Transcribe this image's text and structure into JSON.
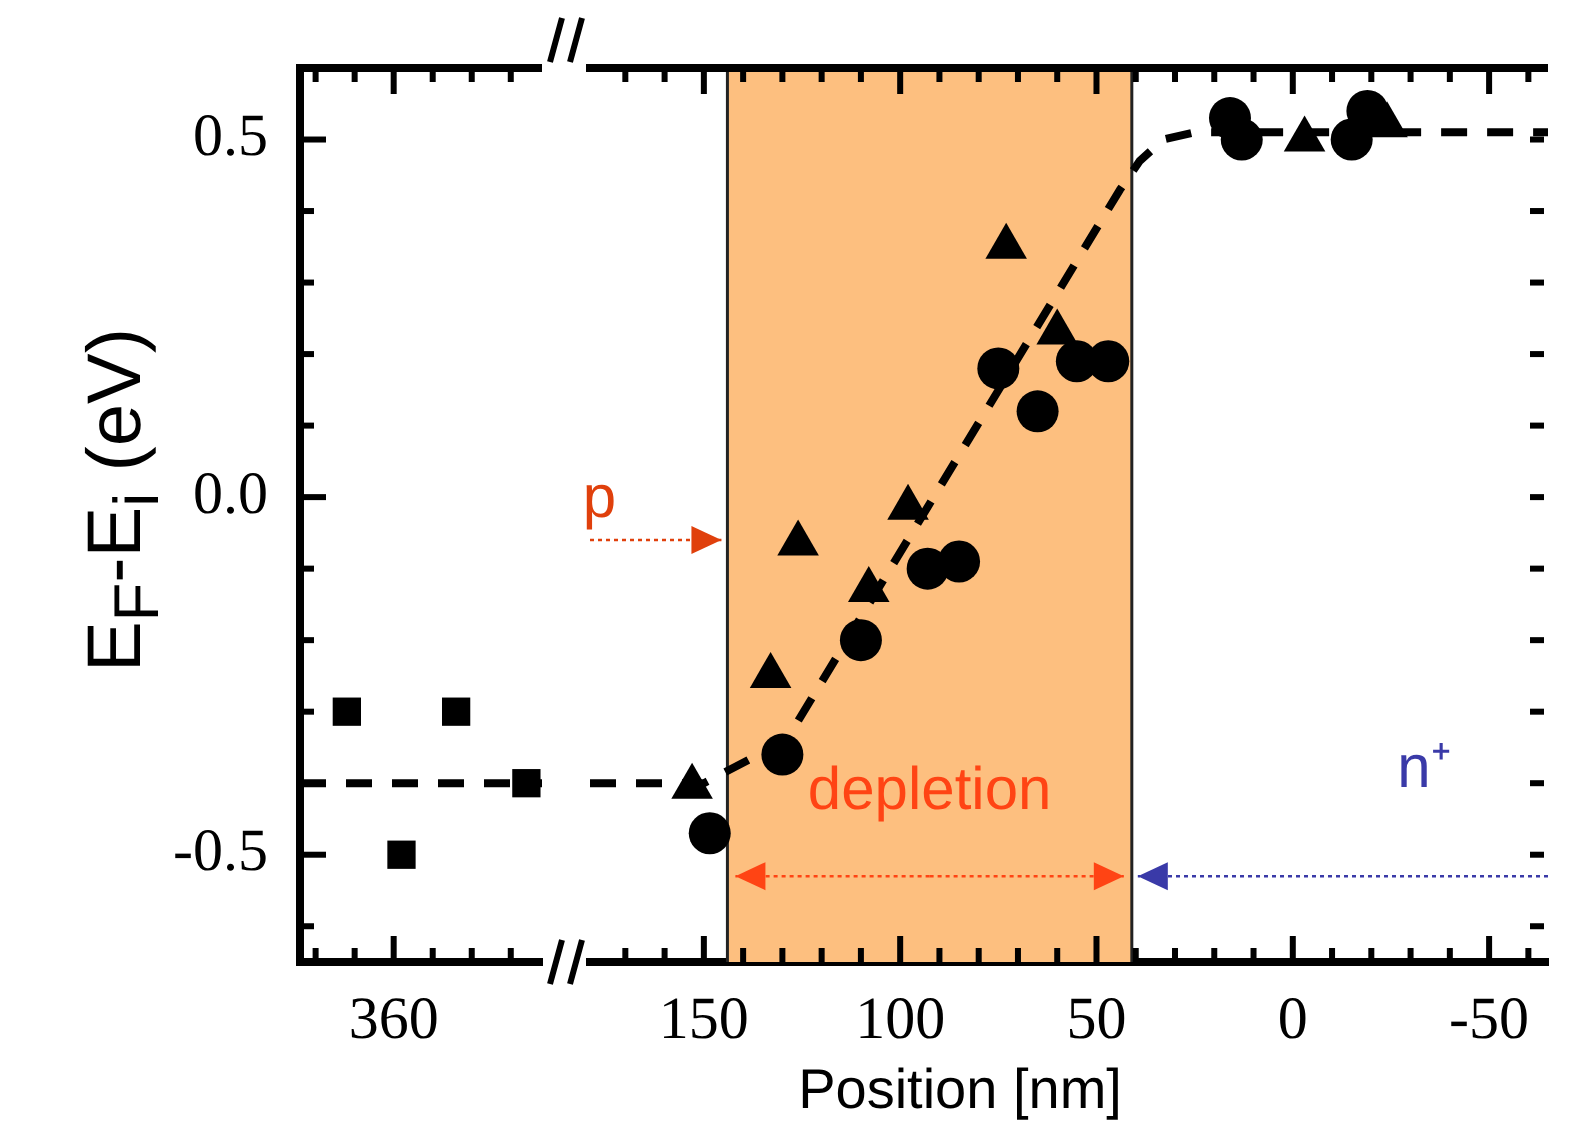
{
  "chart_data": [
    {
      "type": "scatter",
      "ylabel": "E$_{F}$-E$_{i}$ (eV)",
      "categories": [
        null,
        null,
        null,
        null,
        null,
        null,
        null,
        null,
        null,
        null,
        null,
        null,
        "360",
        null,
        null,
        null,
        null,
        null,
        null,
        null,
        null,
        null,
        null,
        null,
        null,
        null,
        null,
        null,
        null,
        null,
        null,
        null
      ],
      "ylim": [
        -0.65,
        0.6
      ],
      "yticks": [
        {
          "value": -0.6,
          "label": null
        },
        -0.5,
        {
          "value": -0.4,
          "label": null
        },
        {
          "value": -0.3,
          "label": null
        },
        {
          "value": -0.2,
          "label": null
        },
        {
          "value": -0.1,
          "label": null
        },
        {
          "value": 0,
          "label": "0.0"
        },
        {
          "value": 0.1,
          "label": null
        },
        {
          "value": 0.2,
          "label": null
        },
        {
          "value": 0.3,
          "label": null
        },
        {
          "value": 0.4,
          "label": null
        },
        0.5
      ],
      "series": [
        {
          "color": "#000000",
          "marker": "square",
          "values": [
            null,
            null,
            null,
            null,
            null,
            null,
            -0.3,
            null,
            null,
            null,
            null,
            null,
            null,
            -0.5,
            null,
            null,
            null,
            null,
            null,
            null,
            -0.3,
            null,
            null,
            null,
            null,
            null,
            null,
            null,
            null,
            -0.4,
            null,
            null
          ]
        },
        {
          "type": "line",
          "color": "#000000",
          "marker": "none",
          "line_style": "dashed",
          "values": [
            -0.4,
            -0.4,
            -0.4,
            -0.4,
            -0.4,
            -0.4,
            -0.4,
            -0.4,
            -0.4,
            -0.4,
            -0.4,
            -0.4,
            -0.4,
            -0.4,
            -0.4,
            -0.4,
            -0.4,
            -0.4,
            -0.4,
            -0.4,
            -0.4,
            -0.4,
            -0.4,
            -0.4,
            -0.4,
            -0.4,
            -0.4,
            -0.4,
            -0.4,
            -0.4,
            -0.4,
            -0.4
          ]
        }
      ]
    },
    {
      "type": "scatter",
      "xlabel": "Position [nm]",
      "tick_labels": "x",
      "xlim": [
        179,
        -65
      ],
      "xticks": [
        {
          "value": 170,
          "label": null
        },
        {
          "value": 160,
          "label": null
        },
        150,
        {
          "value": 140,
          "label": null
        },
        {
          "value": 130,
          "label": null
        },
        {
          "value": 120,
          "label": null
        },
        {
          "value": 110,
          "label": null
        },
        100,
        {
          "value": 90,
          "label": null
        },
        {
          "value": 80,
          "label": null
        },
        {
          "value": 70,
          "label": null
        },
        {
          "value": 60,
          "label": null
        },
        50,
        {
          "value": 40,
          "label": null
        },
        {
          "value": 30,
          "label": null
        },
        {
          "value": 20,
          "label": null
        },
        {
          "value": 10,
          "label": null
        },
        0,
        {
          "value": -10,
          "label": null
        },
        {
          "value": -20,
          "label": null
        },
        {
          "value": -30,
          "label": null
        },
        {
          "value": -40,
          "label": null
        },
        -50,
        {
          "value": -60,
          "label": null
        }
      ],
      "ylim": [
        -0.65,
        0.6
      ],
      "yticks": [
        {
          "value": -0.6,
          "label": null
        },
        {
          "value": -0.5,
          "label": null
        },
        {
          "value": -0.4,
          "label": null
        },
        {
          "value": -0.3,
          "label": null
        },
        {
          "value": -0.2,
          "label": null
        },
        {
          "value": -0.1,
          "label": null
        },
        {
          "value": 0,
          "label": null
        },
        {
          "value": 0.1,
          "label": null
        },
        {
          "value": 0.2,
          "label": null
        },
        {
          "value": 0.3,
          "label": null
        },
        {
          "value": 0.4,
          "label": null
        },
        {
          "value": 0.5,
          "label": null
        }
      ],
      "bands": [
        {
          "axis": "x",
          "from": 144,
          "to": 41,
          "color": "#fdbf7f"
        }
      ],
      "ref_lines": [
        {
          "axis": "x",
          "value": 144,
          "color": "#222222"
        },
        {
          "axis": "x",
          "value": 41,
          "color": "#222222"
        }
      ],
      "annotations": [
        {
          "text": "p",
          "x": 144,
          "y": -0.06
        },
        {
          "text": "depletion",
          "x": 144,
          "y": -0.53
        },
        "n⁺"
      ],
      "series": [
        {
          "type": "line",
          "color": "#000000",
          "marker": "none",
          "line_style": "dashed",
          "x": [
            179,
            150,
            129,
            44,
            39,
            33,
            25,
            -65
          ],
          "values": [
            -0.4,
            -0.4,
            -0.34,
            0.43,
            0.47,
            0.5,
            0.51,
            0.51
          ]
        },
        {
          "color": "#000000",
          "marker": "circle",
          "x": [
            148.5,
            130,
            110,
            93,
            85,
            75,
            65,
            55,
            47,
            16,
            13,
            -15,
            -19
          ],
          "values": [
            -0.47,
            -0.36,
            -0.2,
            -0.1,
            -0.09,
            0.18,
            0.12,
            0.19,
            0.19,
            0.53,
            0.5,
            0.5,
            0.54
          ]
        },
        {
          "color": "#000000",
          "marker": "triangle",
          "x": [
            153,
            133,
            126,
            108,
            98,
            73,
            60,
            -3,
            -24
          ],
          "values": [
            -0.405,
            -0.25,
            -0.065,
            -0.13,
            -0.015,
            0.35,
            0.23,
            0.5,
            0.52
          ]
        }
      ]
    }
  ]
}
